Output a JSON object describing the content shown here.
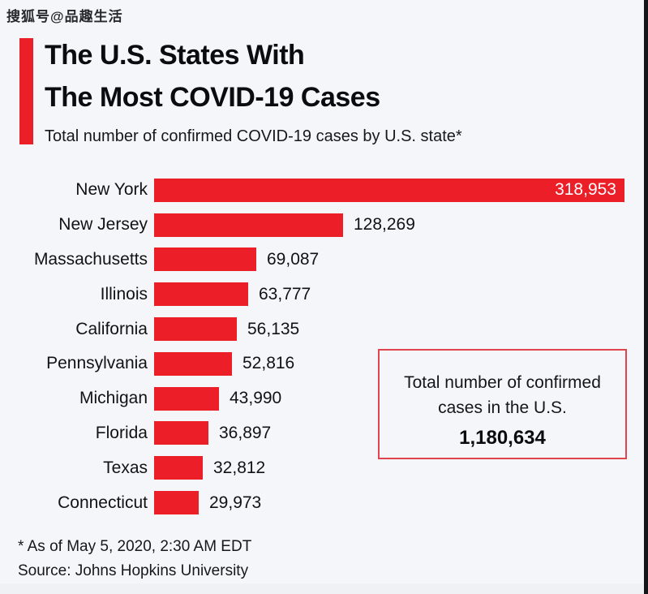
{
  "watermark": "搜狐号@品趣生活",
  "header": {
    "title_line1": "The U.S. States With",
    "title_line2": "The Most COVID-19 Cases",
    "subtitle": "Total number of confirmed COVID-19 cases by U.S. state*"
  },
  "chart_data": {
    "type": "bar",
    "orientation": "horizontal",
    "title": "The U.S. States With The Most COVID-19 Cases",
    "xlabel": "",
    "ylabel": "",
    "xlim": [
      0,
      318953
    ],
    "grid": false,
    "legend": false,
    "categories": [
      "New York",
      "New Jersey",
      "Massachusetts",
      "Illinois",
      "California",
      "Pennsylvania",
      "Michigan",
      "Florida",
      "Texas",
      "Connecticut"
    ],
    "values": [
      318953,
      128269,
      69087,
      63777,
      56135,
      52816,
      43990,
      36897,
      32812,
      29973
    ],
    "value_labels": [
      "318,953",
      "128,269",
      "69,087",
      "63,777",
      "56,135",
      "52,816",
      "43,990",
      "36,897",
      "32,812",
      "29,973"
    ],
    "first_value_inside_bar": true,
    "bar_color": "#ec1e27"
  },
  "total_box": {
    "line1": "Total number of confirmed",
    "line2": "cases in the U.S.",
    "total": "1,180,634"
  },
  "footer": {
    "note": "* As of May 5, 2020, 2:30 AM EDT",
    "source": "Source: Johns Hopkins University"
  },
  "colors": {
    "bar_red": "#ec1e27",
    "accent_red": "#ec1e27",
    "box_border": "#e0454e",
    "background": "#f4f6fa",
    "inside_value_text": "#ffffff"
  }
}
